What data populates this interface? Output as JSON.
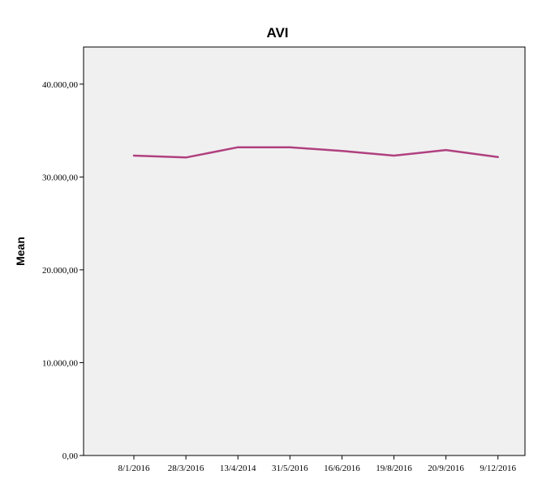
{
  "chart_data": {
    "type": "line",
    "title": "AVI",
    "xlabel": "",
    "ylabel": "Mean",
    "categories": [
      "8/1/2016",
      "28/3/2016",
      "13/4/2014",
      "31/5/2016",
      "16/6/2016",
      "19/8/2016",
      "20/9/2016",
      "9/12/2016"
    ],
    "series": [
      {
        "values": [
          32300,
          32100,
          33200,
          33200,
          32800,
          32300,
          32900,
          32150
        ],
        "color": "#b0407f"
      }
    ],
    "ylim": [
      0,
      44000
    ],
    "yticks": [
      0,
      10000,
      20000,
      30000,
      40000
    ],
    "ytick_labels": [
      "0,00",
      "10.000,00",
      "20.000,00",
      "30.000,00",
      "40.000,00"
    ],
    "grid": false,
    "legend": "none"
  }
}
